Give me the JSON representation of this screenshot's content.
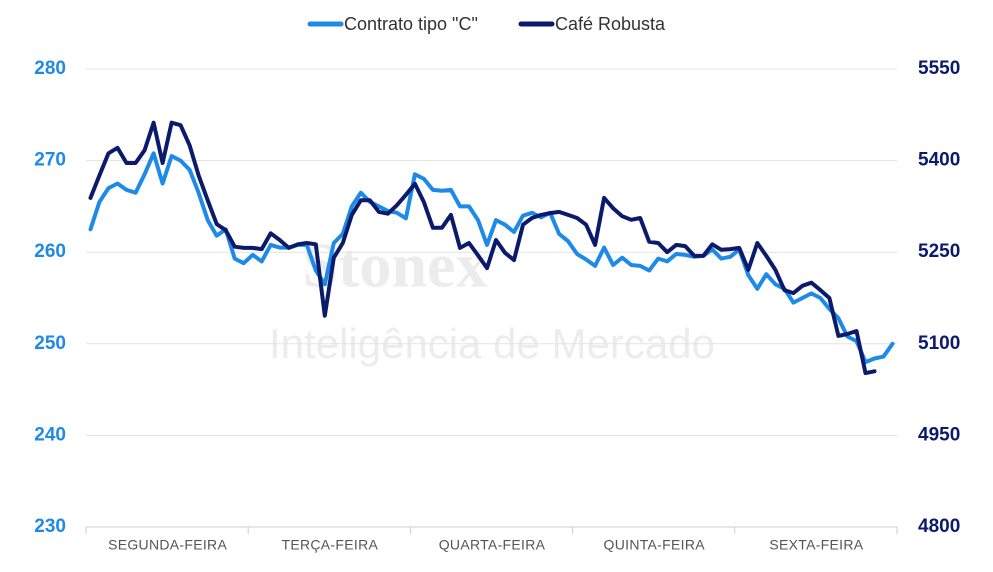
{
  "chart_data": {
    "type": "line",
    "watermark": [
      "Stonex",
      "Inteligência de Mercado"
    ],
    "categories": [
      null,
      null,
      null,
      null,
      null,
      null,
      null,
      null,
      null,
      "SEGUNDA-FEIRA",
      null,
      null,
      null,
      null,
      null,
      null,
      null,
      null,
      null,
      null,
      null,
      null,
      null,
      null,
      null,
      null,
      null,
      "TERÇA-FEIRA",
      null,
      null,
      null,
      null,
      null,
      null,
      null,
      null,
      null,
      null,
      null,
      null,
      null,
      null,
      null,
      null,
      null,
      "QUARTA-FEIRA",
      null,
      null,
      null,
      null,
      null,
      null,
      null,
      null,
      null,
      null,
      null,
      null,
      null,
      null,
      null,
      null,
      null,
      "QUINTA-FEIRA",
      null,
      null,
      null,
      null,
      null,
      null,
      null,
      null,
      null,
      null,
      null,
      null,
      null,
      null,
      null,
      null,
      null,
      "SEXTA-FEIRA",
      null,
      null,
      null,
      null,
      null,
      null,
      null,
      null
    ],
    "series": [
      {
        "name": "Contrato tipo \"C\"",
        "color": "#1e8ae8",
        "values": [
          262.5,
          265.5,
          267,
          267.5,
          266.8,
          266.5,
          268.5,
          270.8,
          267.5,
          270.5,
          270,
          269,
          266.5,
          263.5,
          261.8,
          262.5,
          259.3,
          258.8,
          259.7,
          259,
          260.8,
          260.5,
          260.5,
          260.8,
          260.8,
          258,
          256.5,
          261,
          262,
          265,
          266.5,
          265.5,
          265,
          264.5,
          264.3,
          263.7,
          268.5,
          268,
          266.8,
          266.7,
          266.8,
          265,
          265,
          263.5,
          260.8,
          263.5,
          263,
          262.2,
          264,
          264.3,
          263.8,
          264.3,
          262,
          261.2,
          259.8,
          259.2,
          258.5,
          260.5,
          258.6,
          259.4,
          258.6,
          258.5,
          258,
          259.3,
          259,
          259.8,
          259.7,
          259.5,
          259.6,
          260.3,
          259.3,
          259.5,
          260.3,
          257.5,
          256,
          257.6,
          256.5,
          256,
          254.5,
          255,
          255.5,
          255,
          253.8,
          252.8,
          250.8,
          250.3,
          248,
          248.4,
          248.6,
          250
        ]
      },
      {
        "name": "Café Robusta",
        "color": "#0c1a6b",
        "axis": "y2",
        "values": [
          5339,
          5376,
          5412,
          5421,
          5396,
          5396,
          5417,
          5462,
          5396,
          5462,
          5458,
          5425,
          5376,
          5335,
          5296,
          5286,
          5259,
          5257,
          5257,
          5255,
          5281,
          5270,
          5257,
          5263,
          5265,
          5263,
          5146,
          5241,
          5265,
          5311,
          5335,
          5335,
          5316,
          5313,
          5327,
          5344,
          5362,
          5332,
          5290,
          5290,
          5311,
          5257,
          5265,
          5245,
          5224,
          5270,
          5249,
          5237,
          5295,
          5306,
          5311,
          5314,
          5316,
          5311,
          5306,
          5295,
          5262,
          5339,
          5322,
          5309,
          5303,
          5306,
          5267,
          5265,
          5250,
          5262,
          5260,
          5244,
          5244,
          5263,
          5254,
          5255,
          5257,
          5221,
          5265,
          5244,
          5221,
          5188,
          5183,
          5195,
          5200,
          5188,
          5175,
          5113,
          5116,
          5121,
          5052,
          5055,
          null,
          null
        ]
      }
    ],
    "ylim": [
      230,
      280
    ],
    "yticks": [
      230,
      240,
      250,
      260,
      270,
      280
    ],
    "y2lim": [
      4800,
      5550
    ],
    "y2ticks": [
      4800,
      4950,
      5100,
      5250,
      5400,
      5550
    ],
    "grid": true,
    "legend": "top"
  }
}
